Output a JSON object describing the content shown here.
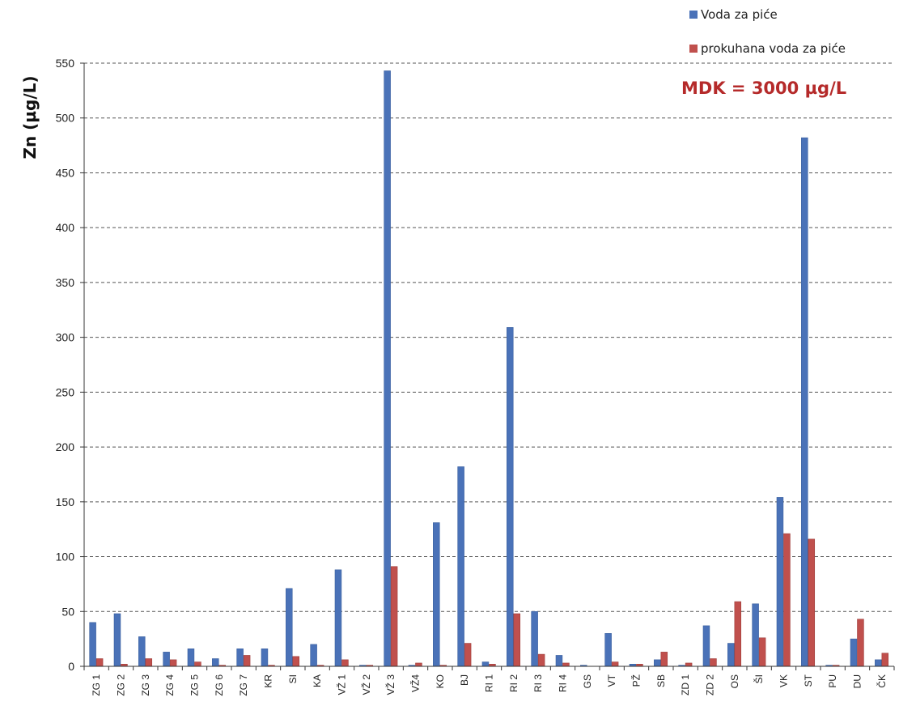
{
  "chart_data": {
    "type": "bar",
    "ylabel": "Zn (µg/L)",
    "annotation": "MDK = 3000  µg/L",
    "ylim": [
      0,
      550
    ],
    "yticks": [
      0,
      50,
      100,
      150,
      200,
      250,
      300,
      350,
      400,
      450,
      500,
      550
    ],
    "grid": true,
    "legend_position": "top-right",
    "categories": [
      "ZG 1",
      "ZG 2",
      "ZG 3",
      "ZG 4",
      "ZG 5",
      "ZG 6",
      "ZG 7",
      "KR",
      "SI",
      "KA",
      "VŽ 1",
      "VŽ 2",
      "VŽ 3",
      "VŽ4",
      "KO",
      "BJ",
      "RI 1",
      "RI 2",
      "RI 3",
      "RI 4",
      "GS",
      "VT",
      "PŽ",
      "SB",
      "ZD 1",
      "ZD 2",
      "OS",
      "ŠI",
      "VK",
      "ST",
      "PU",
      "DU",
      "ČK"
    ],
    "series": [
      {
        "name": "Voda za piće",
        "color": "#4a72b8",
        "values": [
          40,
          48,
          27,
          13,
          16,
          7,
          16,
          16,
          71,
          20,
          88,
          1,
          543,
          1,
          131,
          182,
          4,
          309,
          50,
          10,
          1,
          30,
          2,
          6,
          1,
          37,
          21,
          57,
          154,
          482,
          1,
          25,
          6
        ]
      },
      {
        "name": "prokuhana voda za piće",
        "color": "#c0504d",
        "values": [
          7,
          2,
          7,
          6,
          4,
          1,
          10,
          1,
          9,
          1,
          6,
          1,
          91,
          3,
          1,
          21,
          2,
          48,
          11,
          3,
          0,
          4,
          2,
          13,
          3,
          7,
          59,
          26,
          121,
          116,
          1,
          43,
          12
        ]
      }
    ]
  }
}
